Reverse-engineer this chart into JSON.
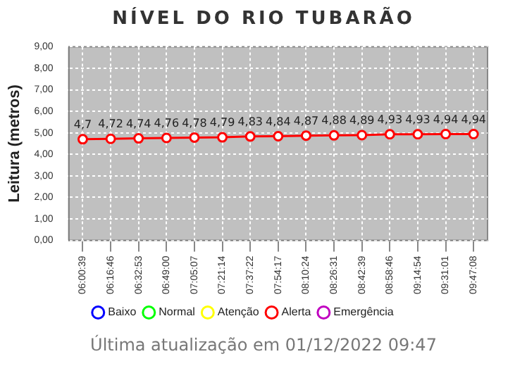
{
  "chart_data": {
    "type": "line",
    "title": "NÍVEL DO RIO TUBARÃO",
    "ylabel": "Leitura (metros)",
    "categories": [
      "06:00:39",
      "06:16:46",
      "06:32:53",
      "06:49:00",
      "07:05:07",
      "07:21:14",
      "07:37:22",
      "07:54:17",
      "08:10:24",
      "08:26:31",
      "08:42:39",
      "08:58:46",
      "09:14:54",
      "09:31:01",
      "09:47:08"
    ],
    "series": [
      {
        "name": "Baixo",
        "color": "#0000ff",
        "values": [
          null,
          null,
          null,
          null,
          null,
          null,
          null,
          null,
          null,
          null,
          null,
          null,
          null,
          null,
          null
        ]
      },
      {
        "name": "Normal",
        "color": "#00ff00",
        "values": [
          null,
          null,
          null,
          null,
          null,
          null,
          null,
          null,
          null,
          null,
          null,
          null,
          null,
          null,
          null
        ]
      },
      {
        "name": "Atenção",
        "color": "#ffff00",
        "values": [
          null,
          null,
          null,
          null,
          null,
          null,
          null,
          null,
          null,
          null,
          null,
          null,
          null,
          null,
          null
        ]
      },
      {
        "name": "Alerta",
        "color": "#ff0000",
        "values": [
          4.7,
          4.72,
          4.74,
          4.76,
          4.78,
          4.79,
          4.83,
          4.84,
          4.87,
          4.88,
          4.89,
          4.93,
          4.93,
          4.94,
          4.94
        ],
        "value_labels": [
          "4,7",
          "4,72",
          "4,74",
          "4,76",
          "4,78",
          "4,79",
          "4,83",
          "4,84",
          "4,87",
          "4,88",
          "4,89",
          "4,93",
          "4,93",
          "4,94",
          "4,94"
        ]
      },
      {
        "name": "Emergência",
        "color": "#c000c0",
        "values": [
          null,
          null,
          null,
          null,
          null,
          null,
          null,
          null,
          null,
          null,
          null,
          null,
          null,
          null,
          null
        ]
      }
    ],
    "ylim": [
      0,
      9
    ],
    "yticks": [
      {
        "value": 0,
        "label": "0,00"
      },
      {
        "value": 1,
        "label": "1,00"
      },
      {
        "value": 2,
        "label": "2,00"
      },
      {
        "value": 3,
        "label": "3,00"
      },
      {
        "value": 4,
        "label": "4,00"
      },
      {
        "value": 5,
        "label": "5,00"
      },
      {
        "value": 6,
        "label": "6,00"
      },
      {
        "value": 7,
        "label": "7,00"
      },
      {
        "value": 8,
        "label": "8,00"
      },
      {
        "value": 9,
        "label": "9,00"
      }
    ],
    "grid": true,
    "legend": "bottom",
    "marker": "circle",
    "line_style": "solid",
    "annotations": [
      "Última atualização em 01/12/2022 09:47"
    ]
  }
}
